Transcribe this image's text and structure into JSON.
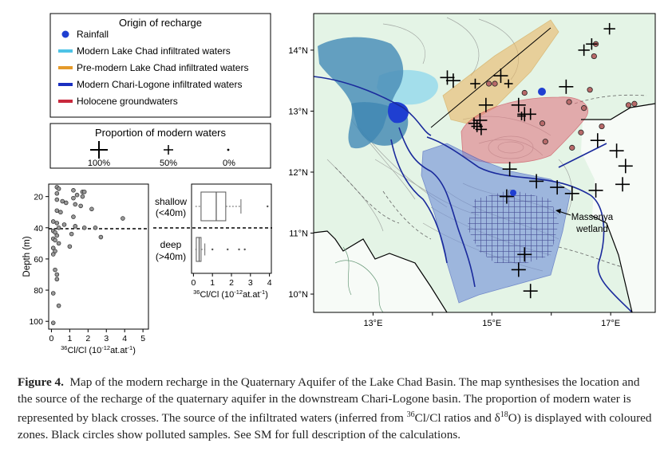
{
  "legend_origin": {
    "title": "Origin of recharge",
    "items": [
      {
        "label": "Rainfall",
        "color": "#1f3fd1",
        "symbol": "dot"
      },
      {
        "label": "Modern Lake Chad infiltrated waters",
        "color": "#4ec3e6",
        "symbol": "line"
      },
      {
        "label": "Pre-modern Lake Chad infiltrated waters",
        "color": "#e49a2a",
        "symbol": "line"
      },
      {
        "label": "Modern Chari-Logone infiltrated waters",
        "color": "#1a2fc0",
        "symbol": "line"
      },
      {
        "label": "Holocene groundwaters",
        "color": "#c8283c",
        "symbol": "line"
      }
    ]
  },
  "legend_proportion": {
    "title": "Proportion of modern waters",
    "items": [
      {
        "label": "100%"
      },
      {
        "label": "50%"
      },
      {
        "label": "0%"
      }
    ]
  },
  "depth_plot": {
    "ylabel": "Depth (m)",
    "xlabel_prefix": "36",
    "xlabel_rest": "Cl/Cl (10",
    "xlabel_exp": "-12",
    "xlabel_tail": "at.at",
    "xlabel_exp2": "-1",
    "xlabel_close": ")",
    "x_ticks": [
      "0",
      "1",
      "2",
      "3",
      "4",
      "5"
    ],
    "y_ticks": [
      "20",
      "40",
      "60",
      "80",
      "100"
    ],
    "points": [
      [
        0.3,
        14
      ],
      [
        0.4,
        15
      ],
      [
        1.2,
        16
      ],
      [
        1.7,
        17
      ],
      [
        1.8,
        17
      ],
      [
        0.3,
        18
      ],
      [
        1.4,
        19
      ],
      [
        1.7,
        20
      ],
      [
        1.2,
        21
      ],
      [
        0.3,
        22
      ],
      [
        0.6,
        23
      ],
      [
        0.8,
        24
      ],
      [
        1.3,
        25
      ],
      [
        1.6,
        26
      ],
      [
        2.2,
        28
      ],
      [
        0.3,
        29
      ],
      [
        0.5,
        30
      ],
      [
        1.2,
        33
      ],
      [
        3.9,
        34
      ],
      [
        0.1,
        36
      ],
      [
        0.3,
        37
      ],
      [
        0.7,
        38
      ],
      [
        1.3,
        39
      ],
      [
        0.4,
        40
      ],
      [
        1.8,
        40
      ],
      [
        2.4,
        40
      ],
      [
        0.1,
        42
      ],
      [
        0.2,
        43
      ],
      [
        1.1,
        44
      ],
      [
        0.3,
        45
      ],
      [
        2.7,
        46
      ],
      [
        0.1,
        47
      ],
      [
        0.2,
        48
      ],
      [
        0.4,
        50
      ],
      [
        1.0,
        52
      ],
      [
        0.1,
        53
      ],
      [
        0.2,
        55
      ],
      [
        0.1,
        57
      ],
      [
        0.2,
        67
      ],
      [
        0.3,
        70
      ],
      [
        0.3,
        73
      ],
      [
        0.1,
        82
      ],
      [
        0.4,
        90
      ],
      [
        0.1,
        101
      ]
    ]
  },
  "box_plot": {
    "shallow_label": "shallow",
    "shallow_range": "(<40m)",
    "deep_label": "deep",
    "deep_range": "(>40m)",
    "x_ticks": [
      "0",
      "1",
      "2",
      "3",
      "4"
    ],
    "xlabel_prefix": "36",
    "xlabel_rest": "Cl/Cl (10",
    "xlabel_exp": "-12",
    "xlabel_tail": "at.at",
    "xlabel_exp2": "-1",
    "xlabel_close": ")",
    "shallow": {
      "min": 0.1,
      "q1": 0.4,
      "median": 1.2,
      "q3": 1.7,
      "max": 2.5,
      "outliers": [
        3.9
      ]
    },
    "deep": {
      "min": 0.1,
      "q1": 0.15,
      "median": 0.3,
      "q3": 0.4,
      "max": 0.6,
      "outliers": [
        1.0,
        1.8,
        2.4,
        2.7
      ]
    }
  },
  "map": {
    "lat_ticks": [
      "14°N",
      "13°N",
      "12°N",
      "11°N",
      "10°N"
    ],
    "lon_ticks": [
      "13°E",
      "15°E",
      "17°E"
    ],
    "wetland_label_line1": "Massenya",
    "wetland_label_line2": "wetland"
  },
  "caption": {
    "figure_label": "Figure 4.",
    "text_before_iso": "Map of the modern recharge in the Quaternary Aquifer of the Lake Chad Basin. The map synthesises the location and the source of the recharge of the quaternary aquifer in the downstream Chari-Logone basin. The proportion of modern water is represented by black crosses. The source of the infiltrated waters (inferred from ",
    "iso1_mass": "36",
    "iso1_rest": "Cl/Cl ratios and δ",
    "iso2_mass": "18",
    "iso2_rest": "O) is displayed with coloured zones. Black circles show polluted samples. See SM for full description of the calculations."
  }
}
